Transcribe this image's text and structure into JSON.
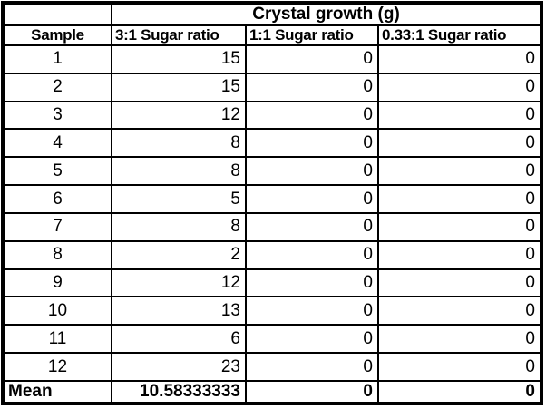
{
  "colors": {
    "border": "#000000",
    "text": "#000000",
    "background": "#ffffff"
  },
  "table": {
    "spanning_header": "Crystal growth (g)",
    "columns": [
      "Sample",
      "3:1 Sugar ratio",
      "1:1 Sugar ratio",
      "0.33:1 Sugar ratio"
    ],
    "rows": [
      {
        "sample": "1",
        "values": [
          "15",
          "0",
          "0"
        ]
      },
      {
        "sample": "2",
        "values": [
          "15",
          "0",
          "0"
        ]
      },
      {
        "sample": "3",
        "values": [
          "12",
          "0",
          "0"
        ]
      },
      {
        "sample": "4",
        "values": [
          "8",
          "0",
          "0"
        ]
      },
      {
        "sample": "5",
        "values": [
          "8",
          "0",
          "0"
        ]
      },
      {
        "sample": "6",
        "values": [
          "5",
          "0",
          "0"
        ]
      },
      {
        "sample": "7",
        "values": [
          "8",
          "0",
          "0"
        ]
      },
      {
        "sample": "8",
        "values": [
          "2",
          "0",
          "0"
        ]
      },
      {
        "sample": "9",
        "values": [
          "12",
          "0",
          "0"
        ]
      },
      {
        "sample": "10",
        "values": [
          "13",
          "0",
          "0"
        ]
      },
      {
        "sample": "11",
        "values": [
          "6",
          "0",
          "0"
        ]
      },
      {
        "sample": "12",
        "values": [
          "23",
          "0",
          "0"
        ]
      }
    ],
    "mean": {
      "label": "Mean",
      "values": [
        "10.58333333",
        "0",
        "0"
      ]
    }
  },
  "chart_data": {
    "type": "table",
    "title": "Crystal growth (g)",
    "row_label_column": "Sample",
    "categories": [
      "1",
      "2",
      "3",
      "4",
      "5",
      "6",
      "7",
      "8",
      "9",
      "10",
      "11",
      "12"
    ],
    "series": [
      {
        "name": "3:1 Sugar ratio",
        "values": [
          15,
          15,
          12,
          8,
          8,
          5,
          8,
          2,
          12,
          13,
          6,
          23
        ],
        "mean": 10.58333333
      },
      {
        "name": "1:1 Sugar ratio",
        "values": [
          0,
          0,
          0,
          0,
          0,
          0,
          0,
          0,
          0,
          0,
          0,
          0
        ],
        "mean": 0
      },
      {
        "name": "0.33:1 Sugar ratio",
        "values": [
          0,
          0,
          0,
          0,
          0,
          0,
          0,
          0,
          0,
          0,
          0,
          0
        ],
        "mean": 0
      }
    ]
  }
}
